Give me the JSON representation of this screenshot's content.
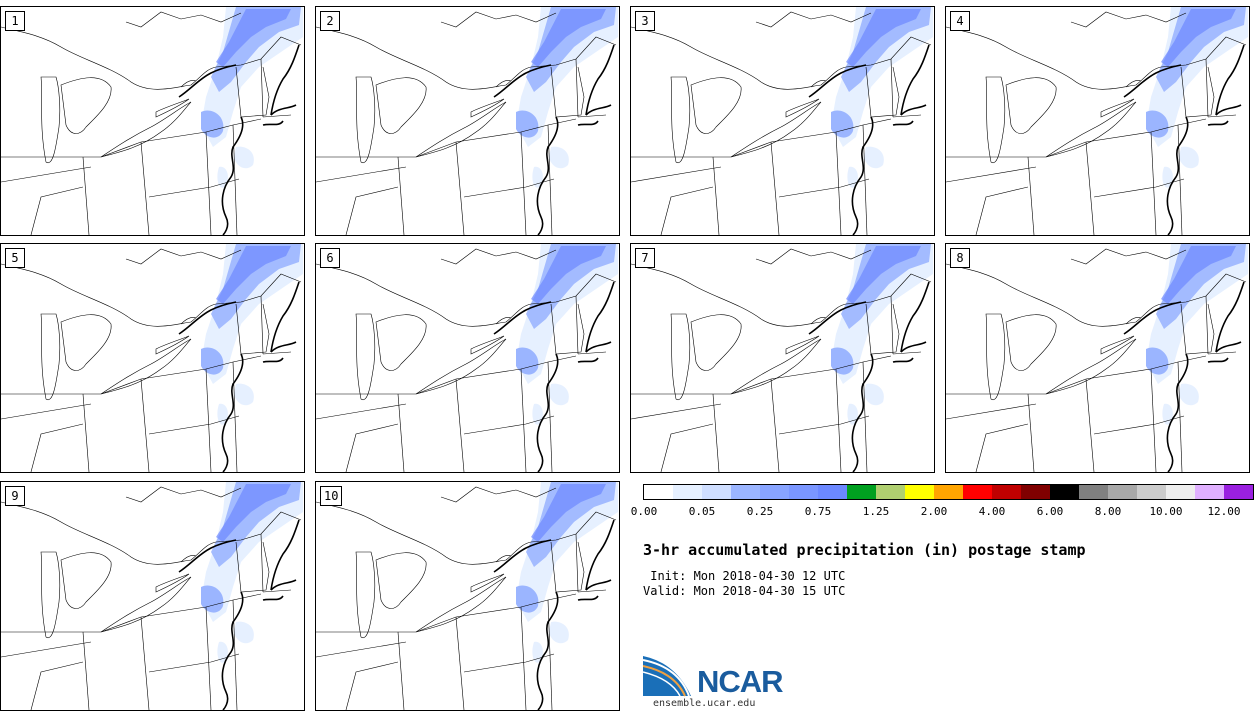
{
  "panels": [
    {
      "label": "1"
    },
    {
      "label": "2"
    },
    {
      "label": "3"
    },
    {
      "label": "4"
    },
    {
      "label": "5"
    },
    {
      "label": "6"
    },
    {
      "label": "7"
    },
    {
      "label": "8"
    },
    {
      "label": "9"
    },
    {
      "label": "10"
    }
  ],
  "colorbar": {
    "colors": [
      "#ffffff",
      "#e6f0ff",
      "#cfdeff",
      "#9bb5ff",
      "#88a4ff",
      "#7a96ff",
      "#6c88ff",
      "#00a020",
      "#b0d070",
      "#ffff00",
      "#ffa500",
      "#ff0000",
      "#c00000",
      "#800000",
      "#000000",
      "#808080",
      "#a8a8a8",
      "#cccccc",
      "#eeeeee",
      "#e0b0ff",
      "#9a20e0"
    ],
    "tick_labels": [
      "0.00",
      "0.05",
      "0.25",
      "0.75",
      "1.25",
      "2.00",
      "4.00",
      "6.00",
      "8.00",
      "10.00",
      "12.00"
    ]
  },
  "title": "3-hr accumulated precipitation (in) postage stamp",
  "init": " Init: Mon 2018-04-30 12 UTC",
  "valid": "Valid: Mon 2018-04-30 15 UTC",
  "logo_text": "NCAR",
  "site": "ensemble.ucar.edu",
  "precip_color_light": "#e6f0ff",
  "precip_color_mid": "#9bb5ff",
  "precip_color_dark": "#6c88ff"
}
